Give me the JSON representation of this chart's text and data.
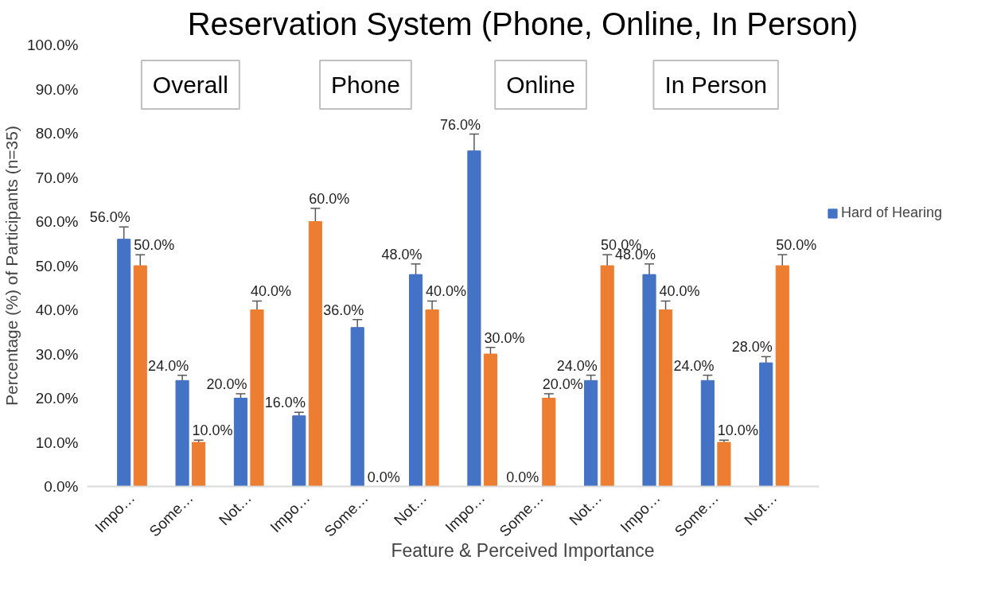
{
  "chart_data": {
    "type": "bar",
    "title": "Reservation System (Phone, Online, In Person)",
    "xlabel": "Feature & Perceived Importance",
    "ylabel": "Percentage (%) of Participants (n=35)",
    "categories": [
      "Impo…",
      "Some…",
      "Not…",
      "Impo…",
      "Some…",
      "Not…",
      "Impo…",
      "Some…",
      "Not…",
      "Impo…",
      "Some…",
      "Not…"
    ],
    "series": [
      {
        "name": "Hard of Hearing",
        "color": "#4472c4",
        "values": [
          56,
          24,
          20,
          16,
          36,
          48,
          76,
          0,
          24,
          48,
          24,
          28
        ],
        "errors": [
          2.8,
          1.2,
          1.0,
          0.8,
          1.8,
          2.4,
          3.8,
          null,
          1.2,
          2.4,
          1.2,
          1.4
        ],
        "value_labels": [
          "56.0%",
          "24.0%",
          "20.0%",
          "16.0%",
          "36.0%",
          "48.0%",
          "76.0%",
          "0.0%",
          "24.0%",
          "48.0%",
          "24.0%",
          "28.0%"
        ]
      },
      {
        "color": "#ed7d31",
        "values": [
          50,
          10,
          40,
          60,
          0,
          40,
          30,
          20,
          50,
          40,
          10,
          50
        ],
        "errors": [
          2.5,
          0.5,
          2.0,
          3.0,
          null,
          2.0,
          1.5,
          1.0,
          2.5,
          2.0,
          0.5,
          2.5
        ],
        "value_labels": [
          "50.0%",
          "10.0%",
          "40.0%",
          "60.0%",
          "0.0%",
          "40.0%",
          "30.0%",
          "20.0%",
          "50.0%",
          "40.0%",
          "10.0%",
          "50.0%"
        ]
      }
    ],
    "ylim": [
      0,
      100
    ],
    "yticks": [
      {
        "value": 0,
        "label": "0.0%"
      },
      {
        "value": 10,
        "label": "10.0%"
      },
      {
        "value": 20,
        "label": "20.0%"
      },
      {
        "value": 30,
        "label": "30.0%"
      },
      {
        "value": 40,
        "label": "40.0%"
      },
      {
        "value": 50,
        "label": "50.0%"
      },
      {
        "value": 60,
        "label": "60.0%"
      },
      {
        "value": 70,
        "label": "70.0%"
      },
      {
        "value": 80,
        "label": "80.0%"
      },
      {
        "value": 90,
        "label": "90.0%"
      },
      {
        "value": 100,
        "label": "100.0%"
      }
    ],
    "grid": false,
    "legend": "right",
    "annotations": [
      "Overall",
      "Phone",
      "Online",
      "In Person"
    ]
  }
}
